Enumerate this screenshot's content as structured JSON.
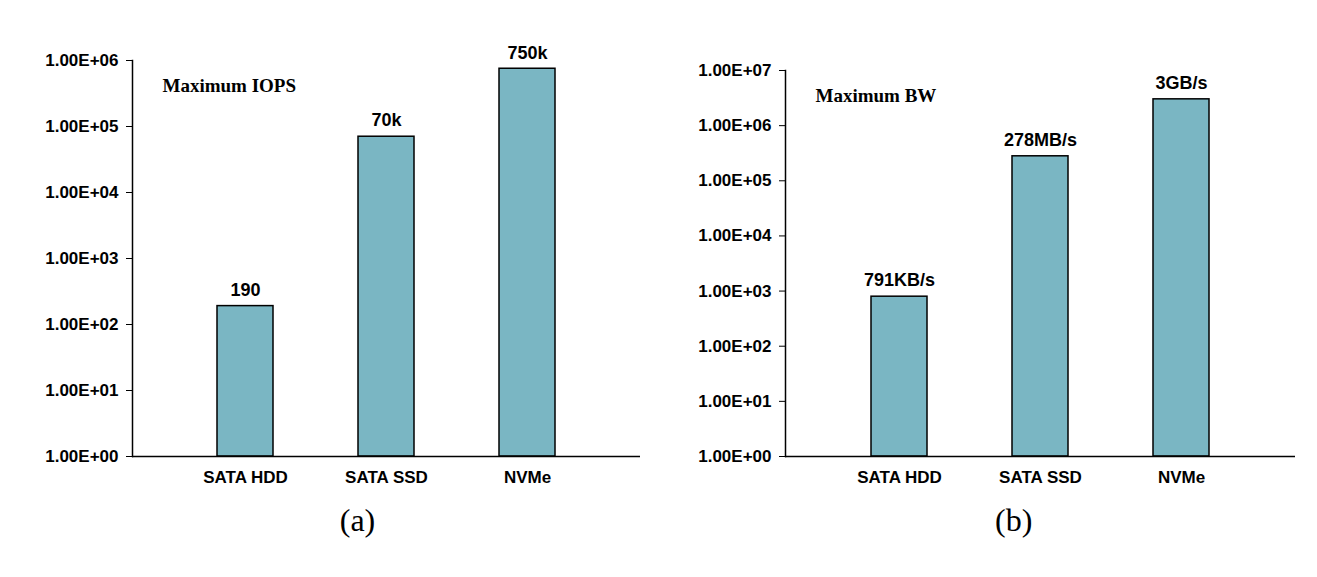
{
  "chart_data": [
    {
      "type": "bar",
      "title": "Maximum IOPS",
      "caption": "(a)",
      "categories": [
        "SATA HDD",
        "SATA SSD",
        "NVMe"
      ],
      "values": [
        190,
        70000,
        750000
      ],
      "value_labels": [
        "190",
        "70k",
        "750k"
      ],
      "color": "#7ab6c3",
      "log": "y",
      "ylim": [
        1,
        1000000
      ],
      "yticks": [
        {
          "value": 1,
          "label": "1.00E+00"
        },
        {
          "value": 10,
          "label": "1.00E+01"
        },
        {
          "value": 100,
          "label": "1.00E+02"
        },
        {
          "value": 1000,
          "label": "1.00E+03"
        },
        {
          "value": 10000,
          "label": "1.00E+04"
        },
        {
          "value": 100000,
          "label": "1.00E+05"
        },
        {
          "value": 1000000,
          "label": "1.00E+06"
        }
      ],
      "grid": false,
      "data_labels": true
    },
    {
      "type": "bar",
      "title": "Maximum BW",
      "caption": "(b)",
      "categories": [
        "SATA HDD",
        "SATA SSD",
        "NVMe"
      ],
      "values": [
        791,
        278000,
        3000000
      ],
      "value_labels": [
        "791KB/s",
        "278MB/s",
        "3GB/s"
      ],
      "color": "#7ab6c3",
      "log": "y",
      "ylim": [
        1,
        10000000
      ],
      "yticks": [
        {
          "value": 1,
          "label": "1.00E+00"
        },
        {
          "value": 10,
          "label": "1.00E+01"
        },
        {
          "value": 100,
          "label": "1.00E+02"
        },
        {
          "value": 1000,
          "label": "1.00E+03"
        },
        {
          "value": 10000,
          "label": "1.00E+04"
        },
        {
          "value": 100000,
          "label": "1.00E+05"
        },
        {
          "value": 1000000,
          "label": "1.00E+06"
        },
        {
          "value": 10000000,
          "label": "1.00E+07"
        }
      ],
      "grid": false,
      "data_labels": true
    }
  ]
}
